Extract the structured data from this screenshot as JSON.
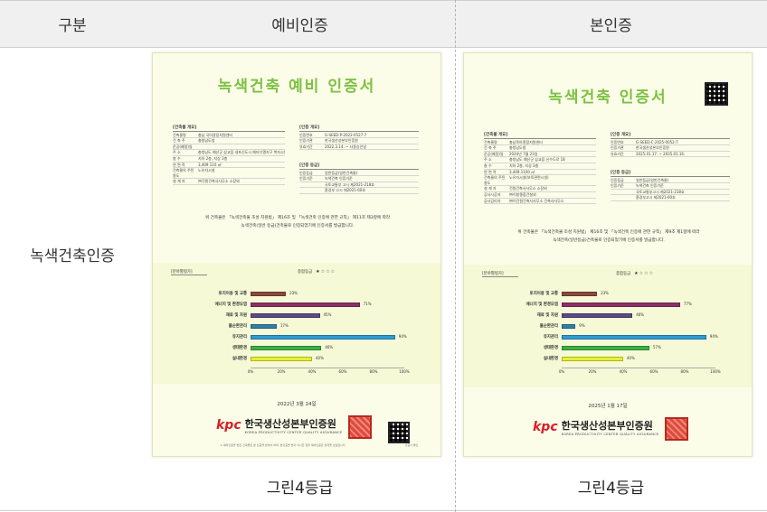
{
  "table": {
    "headers": [
      "구분",
      "예비인증",
      "본인증"
    ],
    "row_label": "녹색건축인증",
    "grades": [
      "그린4등급",
      "그린4등급"
    ]
  },
  "certificates": [
    {
      "title": "녹색건축 예비 인증서",
      "overview_title": "[건축물 개요]",
      "overview": [
        {
          "k": "건축물명",
          "v": "충남 국어광장지원센터"
        },
        {
          "k": "건 축 주",
          "v": "충청남도청"
        },
        {
          "k": "준공(예정)일",
          "v": ""
        },
        {
          "k": "주    소",
          "v": "충청남도 예산군 삽교읍 내포신도시 메타디엘지구 복지시설용지 4"
        },
        {
          "k": "층    수",
          "v": "지하 2층, 지상 3층"
        },
        {
          "k": "연 면 적",
          "v": "3,409.110 ㎡"
        },
        {
          "k": "건축물의 주된 용도",
          "v": "노유자시설"
        },
        {
          "k": "설 계 자",
          "v": "㈜건원건축사사무소 소장외"
        }
      ],
      "cert_info_title": "[인증 개요]",
      "cert_info": [
        {
          "k": "인증번호",
          "v": "G-SEED-P-2022-0527-7"
        },
        {
          "k": "인증기관",
          "v": "한국생산성본부인증원"
        },
        {
          "k": "유효기간",
          "v": "2022.3.14. ~ 사용승인일"
        }
      ],
      "grade_title": "[인증 등급]",
      "grade_info": [
        {
          "k": "인증등급",
          "v": "일반등급(일반건축물)"
        },
        {
          "k": "인증기준",
          "v": "녹색건축 인증기준"
        },
        {
          "k": "",
          "v": "국토교통부 고시 제2021-218호"
        },
        {
          "k": "",
          "v": "환경부 고시 제2021-60호"
        }
      ],
      "statement": [
        "위 건축물은 「녹색건축물 조성 지원법」 제16조 및 「녹색건축 인증에 관한 규칙」 제11조 제3항에 따라",
        "녹색건축(일반 등급)건축물로 인증되었기에 인증서를 발급합니다."
      ],
      "eval_header": "[분야별평가]",
      "overall_label": "종합등급",
      "stars": "★☆☆☆",
      "bars": [
        {
          "label": "토지이용 및 교통",
          "value": 23,
          "text": "23%",
          "color": "#8a4a3c"
        },
        {
          "label": "에너지 및 환경오염",
          "value": 71,
          "text": "71%",
          "color": "#8b2f6a"
        },
        {
          "label": "재료 및 자원",
          "value": 45,
          "text": "45%",
          "color": "#5b4b86"
        },
        {
          "label": "물순환관리",
          "value": 17,
          "text": "17%",
          "color": "#2f7fa8"
        },
        {
          "label": "유지관리",
          "value": 94,
          "text": "94%",
          "color": "#2d9bd6"
        },
        {
          "label": "생태환경",
          "value": 46,
          "text": "46%",
          "color": "#3cb043"
        },
        {
          "label": "실내환경",
          "value": 40,
          "text": "40%",
          "color": "#e6f032"
        }
      ],
      "axis": [
        "0%",
        "20%",
        "40%",
        "60%",
        "80%",
        "100%"
      ],
      "date": "2022년 3월 14일",
      "org_mark": "kpc",
      "org_ko": "한국생산성본부인증원",
      "org_en": "KOREA PRODUCTIVITY CENTER QUALITY ASSURANCE",
      "footnote": "※ 예비인증을 받은 건축물은 본 인증을 받아야 하며, 본인증을 받지 아니한 경우 예비인증은 효력을 상실합니다.",
      "qr_caption": "인증서 확인"
    },
    {
      "title": "녹색건축 인증서",
      "overview_title": "[건축물 개요]",
      "overview": [
        {
          "k": "건축물명",
          "v": "충남육아종합지원센터"
        },
        {
          "k": "건 축 주",
          "v": "충청남도청"
        },
        {
          "k": "준공(예정)일",
          "v": "2024년 7월 23일"
        },
        {
          "k": "주    소",
          "v": "충청남도 예산군 삽교읍 신수도로 18"
        },
        {
          "k": "층    수",
          "v": "지하 2층, 지상 3층"
        },
        {
          "k": "연 면 적",
          "v": "3,409.1100 ㎡"
        },
        {
          "k": "건축물의 주된 용도",
          "v": "노유자시설(보육관련시설)"
        },
        {
          "k": "설 계 자",
          "v": "건원건축사사무소 소장외"
        },
        {
          "k": "공사시공자",
          "v": "㈜이창종합건설외"
        },
        {
          "k": "공사감리자",
          "v": "㈜이건원건축사사무소 건축사사무소"
        }
      ],
      "cert_info_title": "[인증 개요]",
      "cert_info": [
        {
          "k": "인증번호",
          "v": "G-SEED-C-2025-0052-7"
        },
        {
          "k": "인증기관",
          "v": "한국생산성본부인증원"
        },
        {
          "k": "유효기간",
          "v": "2025.01.17. ~ 2035.01.16."
        }
      ],
      "grade_title": "[인증 등급]",
      "grade_info": [
        {
          "k": "인증등급",
          "v": "일반등급(일반건축물)"
        },
        {
          "k": "인증기준",
          "v": "녹색건축 인증기준"
        },
        {
          "k": "",
          "v": "국토교통부고시 제2021-218호"
        },
        {
          "k": "",
          "v": "환경부고시 제2021-60호"
        }
      ],
      "statement": [
        "위 건축물은 「녹색건축물 조성 지원법」 제16조 및 「녹색건축 인증에 관한 규칙」 제9조 제1항에 따라",
        "녹색건축(일반등급)건축물로 인증되었기에 인증서를 발급합니다."
      ],
      "eval_header": "[분야별평가]",
      "overall_label": "종합등급",
      "stars": "★☆☆☆",
      "bars": [
        {
          "label": "토지이용 및 교통",
          "value": 23,
          "text": "23%",
          "color": "#8a4a3c"
        },
        {
          "label": "에너지 및 환경오염",
          "value": 77,
          "text": "77%",
          "color": "#8b2f6a"
        },
        {
          "label": "재료 및 자원",
          "value": 46,
          "text": "46%",
          "color": "#5b4b86"
        },
        {
          "label": "물순환관리",
          "value": 9,
          "text": "9%",
          "color": "#2f7fa8"
        },
        {
          "label": "유지관리",
          "value": 94,
          "text": "94%",
          "color": "#2d9bd6"
        },
        {
          "label": "생태환경",
          "value": 57,
          "text": "57%",
          "color": "#3cb043"
        },
        {
          "label": "실내환경",
          "value": 40,
          "text": "40%",
          "color": "#e6f032"
        }
      ],
      "axis": [
        "0%",
        "20%",
        "40%",
        "60%",
        "80%",
        "100%"
      ],
      "date": "2025년 1월 17일",
      "org_mark": "kpc",
      "org_ko": "한국생산성본부인증원",
      "org_en": "KOREA PRODUCTIVITY CENTER QUALITY ASSURANCE"
    }
  ]
}
